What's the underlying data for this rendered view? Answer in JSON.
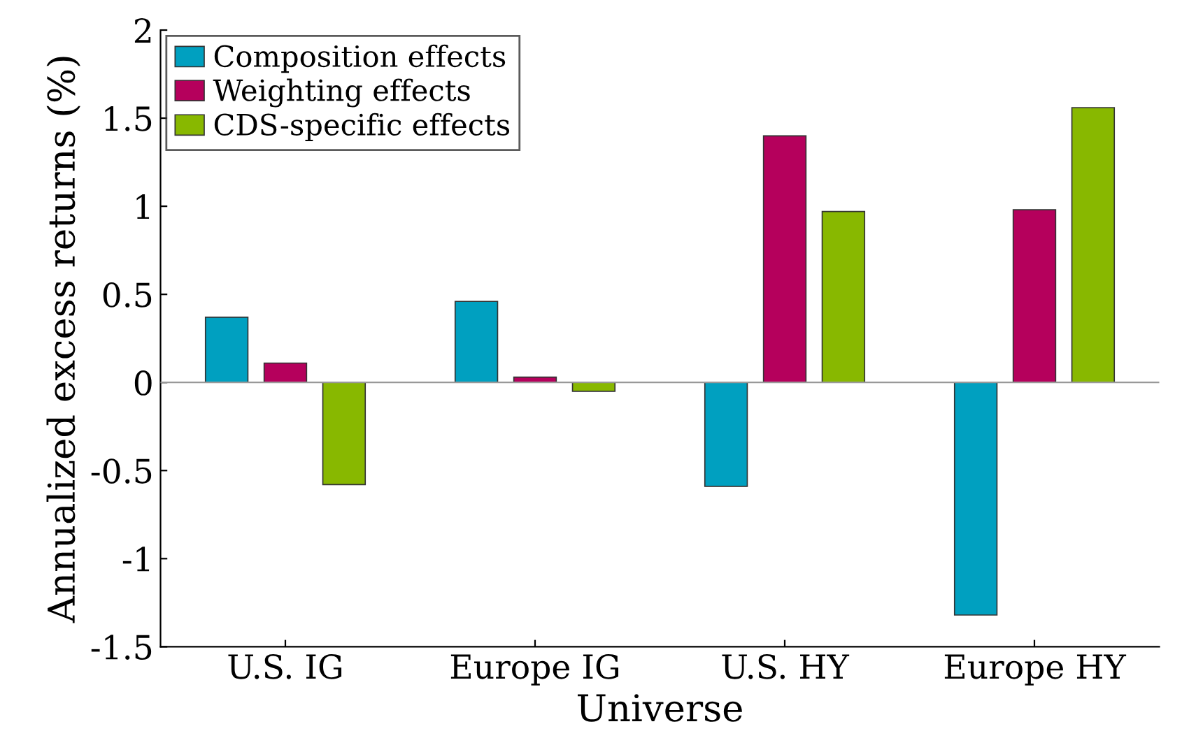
{
  "chart_data": {
    "type": "bar",
    "xlabel": "Universe",
    "ylabel": "Annualized excess returns (%)",
    "categories": [
      "U.S. IG",
      "Europe IG",
      "U.S. HY",
      "Europe HY"
    ],
    "series": [
      {
        "name": "Composition effects",
        "color": "#00a0c0",
        "values": [
          0.37,
          0.46,
          -0.59,
          -1.32
        ]
      },
      {
        "name": "Weighting effects",
        "color": "#b5005c",
        "values": [
          0.11,
          0.03,
          1.4,
          0.98
        ]
      },
      {
        "name": "CDS-specific effects",
        "color": "#88b800",
        "values": [
          -0.58,
          -0.05,
          0.97,
          1.56
        ]
      }
    ],
    "ylim": [
      -1.5,
      2
    ],
    "yticks": [
      -1.5,
      -1,
      -0.5,
      0,
      0.5,
      1,
      1.5,
      2
    ],
    "ref_lines": [
      {
        "axis": "y",
        "value": 0,
        "color": "#999999"
      }
    ],
    "grid": false,
    "legend": "top left"
  }
}
